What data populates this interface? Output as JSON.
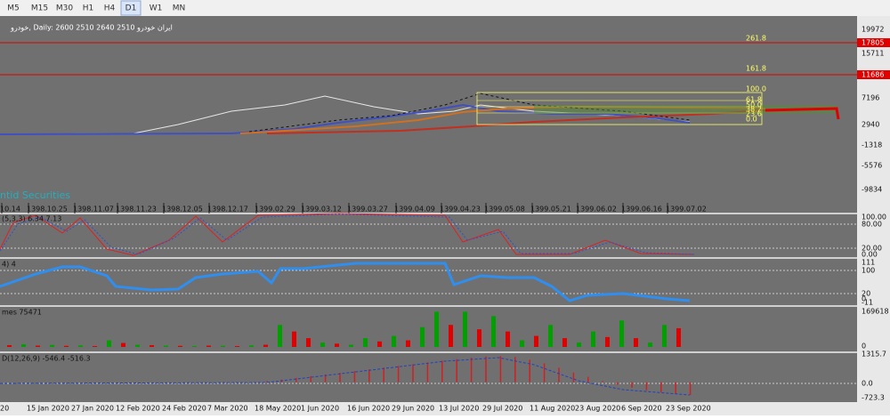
{
  "toolbar": {
    "buttons": [
      "M5",
      "M15",
      "M30",
      "H1",
      "H4",
      "D1",
      "W1",
      "MN"
    ],
    "active": "D1"
  },
  "main": {
    "title": "خودرو, Daily:  2600 2510 2640 2510   ایران خودرو",
    "watermark": "ntid Securities",
    "price_ticks": [
      "19972",
      "17805",
      "15711",
      "11686",
      "7196",
      "2940",
      "-1318",
      "-5576",
      "-9834"
    ],
    "fib_labels": [
      "261.8",
      "161.8",
      "100.0",
      "61.8",
      "50.0",
      "38.2",
      "23.6",
      "0.0"
    ],
    "dates": [
      "10.14",
      "1398.10.25",
      "1398.11.07",
      "1398.11.23",
      "1398.12.05",
      "1398.12.17",
      "1399.02.29",
      "1399.03.12",
      "1399.03.27",
      "1399.04.09",
      "1399.04.23",
      "1399.05.08",
      "1399.05.21",
      "1399.06.02",
      "1399.06.16",
      "1399.07.02"
    ]
  },
  "stochastic": {
    "label": "(5,3,3) 6.34 7.13",
    "ticks": [
      "100.00",
      "80.00",
      "20.00",
      "0.00"
    ]
  },
  "indicator2": {
    "label": "4) 4",
    "ticks": [
      "111",
      "100",
      "20",
      "0",
      "-11"
    ]
  },
  "volume": {
    "label": "mes 75471",
    "ticks": [
      "169618",
      "0"
    ],
    "max": 169618,
    "values": [
      8000,
      12000,
      6000,
      9000,
      5000,
      7000,
      4000,
      30000,
      18000,
      10000,
      8000,
      6000,
      5000,
      4000,
      6000,
      5000,
      4000,
      7000,
      10000,
      100000,
      70000,
      40000,
      20000,
      15000,
      10000,
      40000,
      25000,
      50000,
      30000,
      90000,
      160000,
      100000,
      160000,
      80000,
      140000,
      70000,
      30000,
      50000,
      100000,
      40000,
      20000,
      70000,
      45000,
      120000,
      40000,
      20000,
      100000,
      85000
    ],
    "colors": [
      "#e00000",
      "#00a000",
      "#e00000",
      "#00a000",
      "#e00000",
      "#00a000",
      "#e00000",
      "#00a000",
      "#e00000",
      "#00a000",
      "#e00000",
      "#00a000",
      "#e00000",
      "#00a000",
      "#e00000",
      "#00a000",
      "#e00000",
      "#00a000",
      "#e00000",
      "#00a000",
      "#e00000",
      "#e00000",
      "#00a000",
      "#e00000",
      "#00a000",
      "#00a000",
      "#e00000",
      "#00a000",
      "#e00000",
      "#00a000",
      "#00a000",
      "#e00000",
      "#00a000",
      "#e00000",
      "#00a000",
      "#e00000",
      "#00a000",
      "#e00000",
      "#00a000",
      "#e00000",
      "#00a000",
      "#00a000",
      "#e00000",
      "#00a000",
      "#e00000",
      "#00a000",
      "#00a000",
      "#e00000"
    ]
  },
  "macd": {
    "label": "D(12,26,9) -546.4 -516.3",
    "ticks": [
      "1315.7",
      "0.0",
      "-723.3"
    ],
    "top": 1315.7,
    "bottom": -723.3,
    "values": [
      50,
      120,
      200,
      280,
      360,
      440,
      520,
      600,
      680,
      760,
      840,
      920,
      1000,
      1080,
      1150,
      1200,
      1220,
      1180,
      1050,
      880,
      680,
      450,
      250,
      50,
      -120,
      -260,
      -380,
      -470,
      -540,
      -600
    ]
  },
  "bottom_dates": [
    "20",
    "15 Jan 2020",
    "27 Jan 2020",
    "12 Feb 2020",
    "24 Feb 2020",
    "7 Mar 2020",
    "18 May 2020",
    "1 Jun 2020",
    "16 Jun 2020",
    "29 Jun 2020",
    "13 Jul 2020",
    "29 Jul 2020",
    "11 Aug 2020",
    "23 Aug 2020",
    "6 Sep 2020",
    "23 Sep 2020"
  ]
}
